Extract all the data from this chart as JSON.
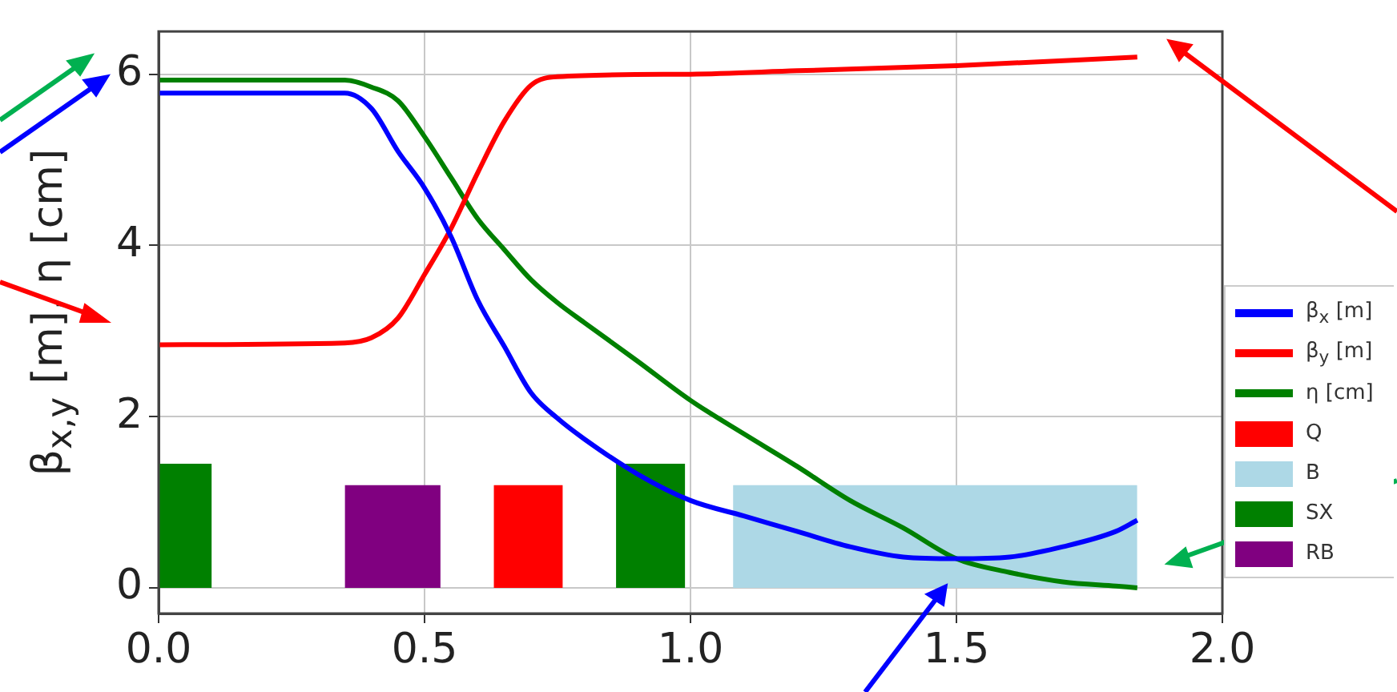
{
  "chart_data": {
    "type": "line",
    "ylabel": "β$_{x,y}$ [m], η [cm]",
    "xlim": [
      0,
      2
    ],
    "xticks": [
      {
        "value": 0,
        "label": "0.0"
      },
      {
        "value": 0.5,
        "label": "0.5"
      },
      {
        "value": 1,
        "label": "1.0"
      },
      {
        "value": 1.5,
        "label": "1.5"
      },
      {
        "value": 2,
        "label": "2.0"
      }
    ],
    "ylim": [
      -0.3,
      6.5
    ],
    "yticks": [
      0,
      2,
      4,
      6
    ],
    "grid": true,
    "legend": "bottom right",
    "marker": "none",
    "line_style": "solid",
    "series": [
      {
        "name": "β$_{x}$ [m]",
        "color": "#0000ff",
        "x": [
          0,
          0.35,
          0.4,
          0.45,
          0.5,
          0.55,
          0.6,
          0.65,
          0.7,
          0.75,
          0.8,
          0.9,
          1.0,
          1.1,
          1.2,
          1.3,
          1.4,
          1.5,
          1.6,
          1.7,
          1.8,
          1.84
        ],
        "values": [
          5.78,
          5.78,
          5.6,
          5.1,
          4.67,
          4.1,
          3.36,
          2.82,
          2.28,
          1.98,
          1.74,
          1.33,
          1.02,
          0.84,
          0.66,
          0.48,
          0.36,
          0.34,
          0.36,
          0.48,
          0.66,
          0.79
        ]
      },
      {
        "name": "β$_{y}$ [m]",
        "color": "#ff0000",
        "x": [
          0,
          0.35,
          0.4,
          0.45,
          0.5,
          0.55,
          0.6,
          0.65,
          0.7,
          0.75,
          1.0,
          1.2,
          1.5,
          1.84
        ],
        "values": [
          2.84,
          2.86,
          2.92,
          3.15,
          3.66,
          4.2,
          4.85,
          5.45,
          5.87,
          5.97,
          6.0,
          6.04,
          6.1,
          6.2
        ]
      },
      {
        "name": "η [cm]",
        "color": "#008000",
        "x": [
          0,
          0.35,
          0.4,
          0.45,
          0.5,
          0.55,
          0.6,
          0.65,
          0.7,
          0.75,
          0.8,
          0.9,
          1.0,
          1.1,
          1.2,
          1.3,
          1.4,
          1.5,
          1.6,
          1.7,
          1.8,
          1.84
        ],
        "values": [
          5.93,
          5.93,
          5.85,
          5.69,
          5.27,
          4.79,
          4.31,
          3.95,
          3.6,
          3.33,
          3.1,
          2.65,
          2.19,
          1.8,
          1.42,
          1.02,
          0.7,
          0.34,
          0.18,
          0.07,
          0.02,
          0.0
        ]
      },
      {
        "name": "Q",
        "type": "area",
        "color": "#ff0000",
        "x": [
          0.63,
          0.76
        ],
        "values": [
          1.2,
          1.2
        ]
      },
      {
        "name": "B",
        "type": "area",
        "color": "#add8e6",
        "x": [
          1.08,
          1.84
        ],
        "values": [
          1.2,
          1.2
        ]
      },
      {
        "name": "SX",
        "type": "area",
        "color": "#008000",
        "x": [
          0,
          0.1,
          0.5,
          0.86,
          0.99
        ],
        "values": [
          1.45,
          1.45,
          null,
          1.45,
          1.45
        ]
      },
      {
        "name": "RB",
        "type": "area",
        "color": "#800080",
        "x": [
          0.35,
          0.53
        ],
        "values": [
          1.2,
          1.2
        ]
      }
    ]
  }
}
